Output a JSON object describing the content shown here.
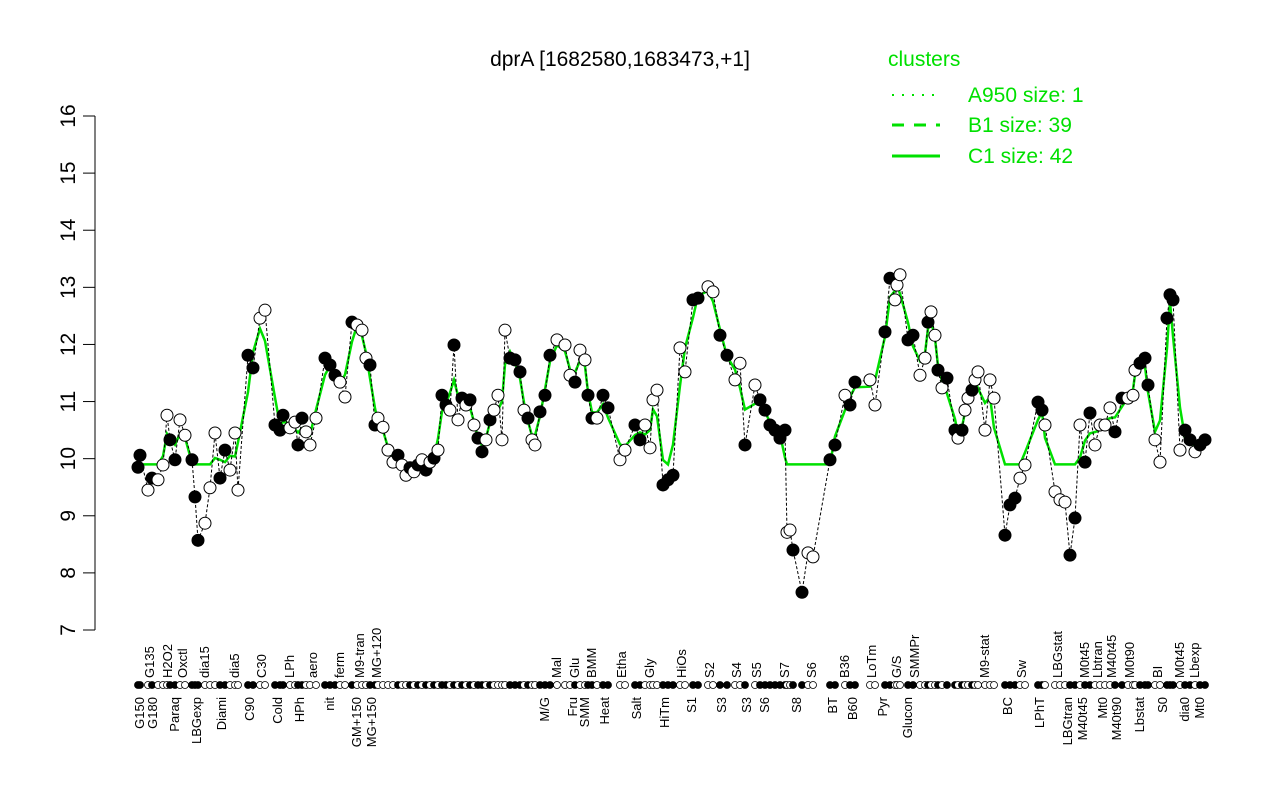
{
  "chart_data": {
    "type": "scatter",
    "title": "dprA [1682580,1683473,+1]",
    "xlabel": "",
    "ylabel": "",
    "ylim": [
      7,
      16
    ],
    "yticks": [
      7,
      8,
      9,
      10,
      11,
      12,
      13,
      14,
      15,
      16
    ],
    "grid": false,
    "legend": {
      "title": "clusters",
      "placement": "top-right",
      "entries": [
        {
          "label": "A950 size: 1",
          "style": "dotted"
        },
        {
          "label": "B1 size: 39",
          "style": "dashed"
        },
        {
          "label": "C1 size: 42",
          "style": "solid"
        }
      ]
    },
    "colors": {
      "cluster": "#00e000",
      "points": "#000000"
    },
    "x_labels_bottom": [
      [
        2,
        "G150"
      ],
      [
        4.6,
        "G180"
      ],
      [
        9,
        "Paraq"
      ],
      [
        13.4,
        "LBGexp"
      ],
      [
        18.4,
        "Diami"
      ],
      [
        24,
        "C90"
      ],
      [
        29.6,
        "Cold"
      ],
      [
        34,
        "HPh"
      ],
      [
        40,
        "nit"
      ],
      [
        45.4,
        "GM+150"
      ],
      [
        48.4,
        "MG+150"
      ],
      [
        83,
        "M/G"
      ],
      [
        88.6,
        "Fru"
      ],
      [
        91,
        "SMM"
      ],
      [
        95,
        "Heat"
      ],
      [
        101.4,
        "Salt"
      ],
      [
        107,
        "HiTm"
      ],
      [
        112.4,
        "S1"
      ],
      [
        118.4,
        "S3"
      ],
      [
        123.4,
        "S3"
      ],
      [
        127,
        "S6"
      ],
      [
        133.4,
        "S8"
      ],
      [
        140.6,
        "BT"
      ],
      [
        144.6,
        "B60"
      ],
      [
        150.6,
        "Pyr"
      ],
      [
        155.6,
        "Glucon"
      ],
      [
        175.6,
        "BC"
      ],
      [
        182,
        "LPhT"
      ],
      [
        187.6,
        "LBGtran"
      ],
      [
        190.6,
        "M40t45"
      ],
      [
        194.6,
        "Mt0"
      ],
      [
        197.4,
        "M40t90"
      ],
      [
        202,
        "Lbstat"
      ],
      [
        206.6,
        "S0"
      ],
      [
        211,
        "dia0"
      ],
      [
        214,
        "Mt0"
      ]
    ],
    "x_labels_top": [
      [
        4,
        "G135"
      ],
      [
        7.6,
        "H2O2"
      ],
      [
        10.6,
        "Oxctl"
      ],
      [
        15,
        "dia15"
      ],
      [
        21,
        "dia5"
      ],
      [
        26.4,
        "C30"
      ],
      [
        32,
        "LPh"
      ],
      [
        36.6,
        "aero"
      ],
      [
        42,
        "ferm"
      ],
      [
        46,
        "M9-tran"
      ],
      [
        49.4,
        "MG+120"
      ],
      [
        85.4,
        "Mal"
      ],
      [
        89,
        "Glu"
      ],
      [
        92.4,
        "BMM"
      ],
      [
        98.4,
        "Etha"
      ],
      [
        104,
        "Gly"
      ],
      [
        110.4,
        "HiOs"
      ],
      [
        116,
        "S2"
      ],
      [
        121.4,
        "S4"
      ],
      [
        125.4,
        "S5"
      ],
      [
        131,
        "S7"
      ],
      [
        136.4,
        "S6"
      ],
      [
        143,
        "B36"
      ],
      [
        148.4,
        "LoTm"
      ],
      [
        153.4,
        "G/S"
      ],
      [
        157,
        "SMMPr"
      ],
      [
        171,
        "M9-stat"
      ],
      [
        178.4,
        "Sw"
      ],
      [
        185.6,
        "LBGstat"
      ],
      [
        191,
        "M0t45"
      ],
      [
        193.6,
        "Lbtran"
      ],
      [
        196.4,
        "M40t45"
      ],
      [
        200,
        "M0t90"
      ],
      [
        205.6,
        "BI"
      ],
      [
        210,
        "M0t45"
      ],
      [
        213,
        "Lbexp"
      ]
    ],
    "points": [
      [
        1.6,
        9.85,
        1
      ],
      [
        2,
        10.06,
        1
      ],
      [
        3.6,
        9.45,
        0
      ],
      [
        4.4,
        9.66,
        1
      ],
      [
        5.6,
        9.63,
        0
      ],
      [
        6.6,
        9.89,
        0
      ],
      [
        7.4,
        10.76,
        0
      ],
      [
        8,
        10.33,
        1
      ],
      [
        9,
        9.98,
        1
      ],
      [
        10,
        10.68,
        0
      ],
      [
        11,
        10.41,
        0
      ],
      [
        12.4,
        9.98,
        1
      ],
      [
        13,
        9.33,
        1
      ],
      [
        13.6,
        8.57,
        1
      ],
      [
        15,
        8.87,
        0
      ],
      [
        16,
        9.49,
        0
      ],
      [
        17,
        10.45,
        0
      ],
      [
        18,
        9.66,
        1
      ],
      [
        19,
        10.15,
        1
      ],
      [
        20,
        9.8,
        0
      ],
      [
        21,
        10.45,
        0
      ],
      [
        21.6,
        9.45,
        0
      ],
      [
        23.6,
        11.81,
        1
      ],
      [
        24.6,
        11.59,
        1
      ],
      [
        26,
        12.46,
        0
      ],
      [
        27,
        12.6,
        0
      ],
      [
        29,
        10.59,
        1
      ],
      [
        30,
        10.5,
        1
      ],
      [
        30.6,
        10.76,
        1
      ],
      [
        32,
        10.54,
        0
      ],
      [
        33,
        10.64,
        0
      ],
      [
        33.6,
        10.24,
        1
      ],
      [
        34.4,
        10.71,
        1
      ],
      [
        35.2,
        10.47,
        0
      ],
      [
        36,
        10.24,
        0
      ],
      [
        37.2,
        10.71,
        0
      ],
      [
        39,
        11.76,
        1
      ],
      [
        40,
        11.64,
        1
      ],
      [
        41,
        11.46,
        1
      ],
      [
        42,
        11.34,
        0
      ],
      [
        43,
        11.08,
        0
      ],
      [
        44.4,
        12.39,
        1
      ],
      [
        45.4,
        12.34,
        0
      ],
      [
        46.4,
        12.25,
        0
      ],
      [
        47.2,
        11.76,
        0
      ],
      [
        48,
        11.64,
        1
      ],
      [
        49,
        10.59,
        1
      ],
      [
        49.6,
        10.71,
        0
      ],
      [
        50.6,
        10.55,
        0
      ],
      [
        51.6,
        10.15,
        0
      ],
      [
        52.6,
        9.94,
        0
      ],
      [
        53.6,
        10.06,
        1
      ],
      [
        54.4,
        9.89,
        0
      ],
      [
        55.2,
        9.71,
        0
      ],
      [
        56,
        9.84,
        1
      ],
      [
        56.8,
        9.77,
        0
      ],
      [
        57.6,
        9.89,
        1
      ],
      [
        58.4,
        9.98,
        0
      ],
      [
        59.2,
        9.8,
        1
      ],
      [
        60,
        9.94,
        0
      ],
      [
        60.8,
        10.01,
        1
      ],
      [
        61.6,
        10.15,
        0
      ],
      [
        62.4,
        11.11,
        1
      ],
      [
        63.2,
        10.94,
        1
      ],
      [
        64,
        10.85,
        0
      ],
      [
        64.8,
        11.99,
        1
      ],
      [
        65.6,
        10.68,
        0
      ],
      [
        66.4,
        11.06,
        1
      ],
      [
        67.2,
        10.94,
        0
      ],
      [
        68,
        11.03,
        1
      ],
      [
        68.8,
        10.59,
        0
      ],
      [
        69.6,
        10.36,
        1
      ],
      [
        70.4,
        10.12,
        1
      ],
      [
        71.2,
        10.33,
        0
      ],
      [
        72,
        10.68,
        1
      ],
      [
        72.8,
        10.85,
        0
      ],
      [
        73.6,
        11.11,
        0
      ],
      [
        74.4,
        10.33,
        0
      ],
      [
        75,
        12.25,
        0
      ],
      [
        76,
        11.76,
        1
      ],
      [
        77,
        11.73,
        1
      ],
      [
        78,
        11.52,
        1
      ],
      [
        78.8,
        10.85,
        0
      ],
      [
        79.6,
        10.71,
        1
      ],
      [
        80.4,
        10.33,
        0
      ],
      [
        81,
        10.24,
        0
      ],
      [
        82,
        10.82,
        1
      ],
      [
        83,
        11.11,
        1
      ],
      [
        84,
        11.81,
        1
      ],
      [
        85.4,
        12.08,
        0
      ],
      [
        87,
        11.99,
        0
      ],
      [
        88,
        11.46,
        0
      ],
      [
        89,
        11.34,
        1
      ],
      [
        90,
        11.9,
        0
      ],
      [
        91,
        11.73,
        0
      ],
      [
        91.6,
        11.11,
        1
      ],
      [
        92.4,
        10.71,
        1
      ],
      [
        93.4,
        10.71,
        0
      ],
      [
        94.6,
        11.11,
        1
      ],
      [
        95.6,
        10.89,
        1
      ],
      [
        98,
        9.98,
        0
      ],
      [
        99,
        10.15,
        0
      ],
      [
        101,
        10.59,
        1
      ],
      [
        102,
        10.33,
        1
      ],
      [
        103,
        10.59,
        0
      ],
      [
        104,
        10.19,
        0
      ],
      [
        104.6,
        11.03,
        0
      ],
      [
        105.4,
        11.2,
        0
      ],
      [
        106.6,
        9.54,
        1
      ],
      [
        107.6,
        9.63,
        1
      ],
      [
        108.6,
        9.71,
        1
      ],
      [
        110,
        11.94,
        0
      ],
      [
        111,
        11.52,
        0
      ],
      [
        112.6,
        12.78,
        1
      ],
      [
        113.6,
        12.81,
        1
      ],
      [
        115.6,
        13.01,
        0
      ],
      [
        116.6,
        12.92,
        0
      ],
      [
        118,
        12.16,
        1
      ],
      [
        119.4,
        11.81,
        1
      ],
      [
        121,
        11.38,
        0
      ],
      [
        122,
        11.67,
        0
      ],
      [
        123,
        10.24,
        1
      ],
      [
        125,
        11.29,
        0
      ],
      [
        126,
        11.03,
        1
      ],
      [
        127,
        10.85,
        1
      ],
      [
        128,
        10.59,
        1
      ],
      [
        129,
        10.5,
        1
      ],
      [
        130,
        10.36,
        1
      ],
      [
        131,
        10.5,
        1
      ],
      [
        131.4,
        8.71,
        0
      ],
      [
        132,
        8.75,
        0
      ],
      [
        132.6,
        8.4,
        1
      ],
      [
        134.4,
        7.66,
        1
      ],
      [
        135.6,
        8.35,
        0
      ],
      [
        136.6,
        8.28,
        0
      ],
      [
        140,
        9.98,
        1
      ],
      [
        141,
        10.24,
        1
      ],
      [
        143,
        11.11,
        0
      ],
      [
        144,
        10.94,
        1
      ],
      [
        145,
        11.34,
        1
      ],
      [
        148,
        11.38,
        0
      ],
      [
        149,
        10.94,
        0
      ],
      [
        151,
        12.22,
        1
      ],
      [
        152,
        13.16,
        1
      ],
      [
        153,
        12.78,
        0
      ],
      [
        153.4,
        13.04,
        0
      ],
      [
        154,
        13.22,
        0
      ],
      [
        155.6,
        12.08,
        1
      ],
      [
        156.6,
        12.16,
        1
      ],
      [
        158,
        11.46,
        0
      ],
      [
        159,
        11.76,
        0
      ],
      [
        159.6,
        12.39,
        1
      ],
      [
        160.2,
        12.57,
        0
      ],
      [
        161,
        12.16,
        0
      ],
      [
        161.6,
        11.55,
        1
      ],
      [
        162.4,
        11.24,
        0
      ],
      [
        163.4,
        11.41,
        1
      ],
      [
        165,
        10.5,
        1
      ],
      [
        165.6,
        10.36,
        0
      ],
      [
        166.4,
        10.5,
        1
      ],
      [
        167,
        10.85,
        0
      ],
      [
        167.6,
        11.06,
        0
      ],
      [
        168.4,
        11.2,
        1
      ],
      [
        169,
        11.38,
        0
      ],
      [
        169.6,
        11.52,
        0
      ],
      [
        171,
        10.5,
        0
      ],
      [
        172,
        11.38,
        0
      ],
      [
        172.8,
        11.06,
        0
      ],
      [
        175,
        8.66,
        1
      ],
      [
        176,
        9.19,
        1
      ],
      [
        177,
        9.31,
        1
      ],
      [
        178,
        9.66,
        0
      ],
      [
        179,
        9.89,
        0
      ],
      [
        181.6,
        10.99,
        1
      ],
      [
        182.4,
        10.85,
        1
      ],
      [
        183,
        10.59,
        0
      ],
      [
        185,
        9.42,
        0
      ],
      [
        186,
        9.28,
        0
      ],
      [
        187,
        9.24,
        0
      ],
      [
        188,
        8.31,
        1
      ],
      [
        189,
        8.96,
        1
      ],
      [
        190,
        10.59,
        0
      ],
      [
        191,
        9.94,
        1
      ],
      [
        192,
        10.8,
        1
      ],
      [
        193,
        10.24,
        0
      ],
      [
        194,
        10.59,
        0
      ],
      [
        195,
        10.59,
        0
      ],
      [
        196,
        10.89,
        0
      ],
      [
        197,
        10.47,
        1
      ],
      [
        198.4,
        11.06,
        1
      ],
      [
        199.6,
        11.06,
        0
      ],
      [
        200.6,
        11.11,
        0
      ],
      [
        201,
        11.55,
        0
      ],
      [
        202,
        11.67,
        1
      ],
      [
        203,
        11.76,
        1
      ],
      [
        203.6,
        11.29,
        1
      ],
      [
        205,
        10.33,
        0
      ],
      [
        206,
        9.94,
        0
      ],
      [
        207.4,
        12.46,
        1
      ],
      [
        208,
        12.87,
        1
      ],
      [
        208.6,
        12.78,
        1
      ],
      [
        210,
        10.15,
        0
      ],
      [
        211,
        10.5,
        1
      ],
      [
        212,
        10.33,
        1
      ],
      [
        213,
        10.12,
        0
      ],
      [
        214,
        10.24,
        1
      ],
      [
        215,
        10.33,
        1
      ]
    ]
  }
}
